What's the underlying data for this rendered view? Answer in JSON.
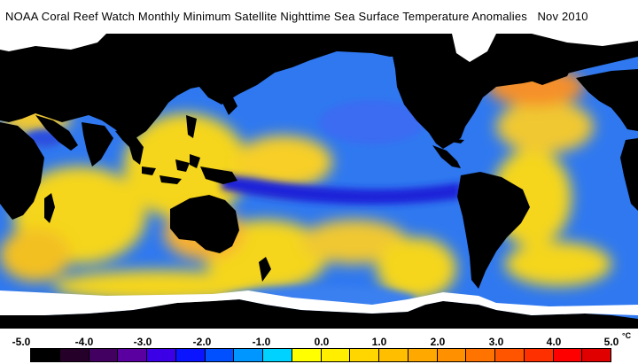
{
  "title": "NOAA Coral Reef Watch Monthly Minimum Satellite Nighttime Sea Surface Temperature Anomalies",
  "date": "Nov 2010",
  "legend": {
    "ticks": [
      "-5.0",
      "-4.0",
      "-3.0",
      "-2.0",
      "-1.0",
      "0.0",
      "1.0",
      "2.0",
      "3.0",
      "4.0",
      "5.0"
    ],
    "unit": "°C",
    "colors": [
      "#000000",
      "#250028",
      "#420060",
      "#5a00a0",
      "#3c00e6",
      "#0a14ff",
      "#0050ff",
      "#0096ff",
      "#00d2ff",
      "#ffff00",
      "#ffee00",
      "#ffd600",
      "#ffbe00",
      "#ffa800",
      "#ff9000",
      "#ff7400",
      "#ff5400",
      "#ff3000",
      "#ff0000",
      "#e00000"
    ]
  },
  "colors": {
    "ocean_blue": "#2f78f0",
    "ocean_warm": "#f5d61e",
    "ocean_warm_alt": "#f7b830",
    "ocean_cold": "#1a22d8",
    "land": "#000000",
    "sea_ice": "#ffffff"
  }
}
